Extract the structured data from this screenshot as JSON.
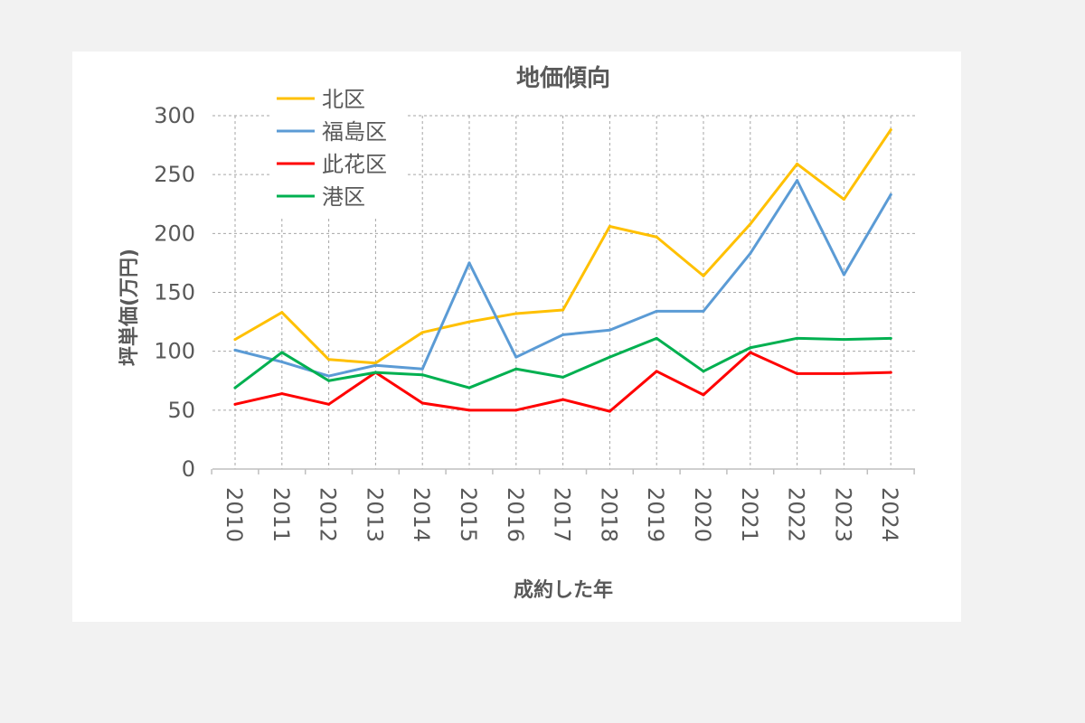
{
  "chart_data": {
    "type": "line",
    "title": "地価傾向",
    "xlabel": "成約した年",
    "ylabel": "坪単価(万円)",
    "ylim": [
      0,
      300
    ],
    "yticks": [
      0,
      50,
      100,
      150,
      200,
      250,
      300
    ],
    "grid": true,
    "legend_position": "top-left",
    "categories": [
      "2010",
      "2011",
      "2012",
      "2013",
      "2014",
      "2015",
      "2016",
      "2017",
      "2018",
      "2019",
      "2020",
      "2021",
      "2022",
      "2023",
      "2024"
    ],
    "series": [
      {
        "name": "北区",
        "color": "#ffc000",
        "values": [
          110,
          133,
          93,
          90,
          116,
          125,
          132,
          135,
          206,
          197,
          164,
          208,
          259,
          229,
          288
        ]
      },
      {
        "name": "福島区",
        "color": "#5b9bd5",
        "values": [
          101,
          91,
          79,
          88,
          85,
          175,
          95,
          114,
          118,
          134,
          134,
          183,
          245,
          165,
          233
        ]
      },
      {
        "name": "此花区",
        "color": "#ff0000",
        "values": [
          55,
          64,
          55,
          82,
          56,
          50,
          50,
          59,
          49,
          83,
          63,
          99,
          81,
          81,
          82
        ]
      },
      {
        "name": "港区",
        "color": "#00b050",
        "values": [
          69,
          99,
          75,
          82,
          80,
          69,
          85,
          78,
          95,
          111,
          83,
          103,
          111,
          110,
          111
        ]
      }
    ]
  }
}
